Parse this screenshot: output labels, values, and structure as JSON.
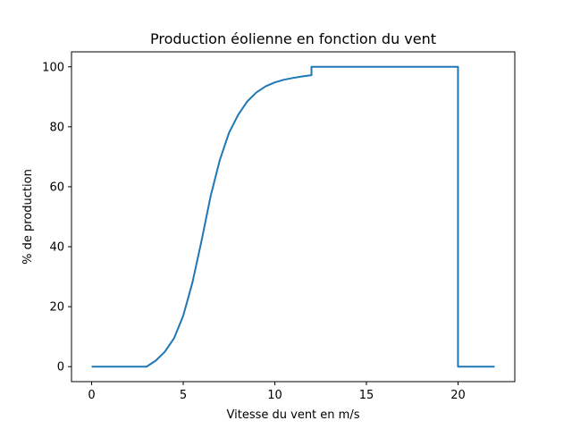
{
  "chart_data": {
    "type": "line",
    "title": "Production éolienne en fonction du vent",
    "xlabel": "Vitesse du vent en m/s",
    "ylabel": "% de production",
    "xlim": [
      -1.1,
      23.1
    ],
    "ylim": [
      -5,
      105
    ],
    "xticks": [
      0,
      5,
      10,
      15,
      20
    ],
    "yticks": [
      0,
      20,
      40,
      60,
      80,
      100
    ],
    "grid": false,
    "legend": "none",
    "colors": {
      "line": "#1f77b4",
      "axes": "#000000",
      "background": "#ffffff"
    },
    "series": [
      {
        "x": [
          0,
          3,
          3.5,
          4,
          4.5,
          5,
          5.5,
          6,
          6.5,
          7,
          7.5,
          8,
          8.5,
          9,
          9.5,
          10,
          10.5,
          11,
          11.5,
          12,
          12,
          15,
          20,
          20,
          22
        ],
        "y": [
          0,
          0,
          2,
          5,
          9.5,
          17,
          28,
          42,
          57,
          69,
          78,
          84,
          88.5,
          91.5,
          93.5,
          94.8,
          95.7,
          96.3,
          96.8,
          97.2,
          100,
          100,
          100,
          0,
          0
        ]
      }
    ]
  }
}
